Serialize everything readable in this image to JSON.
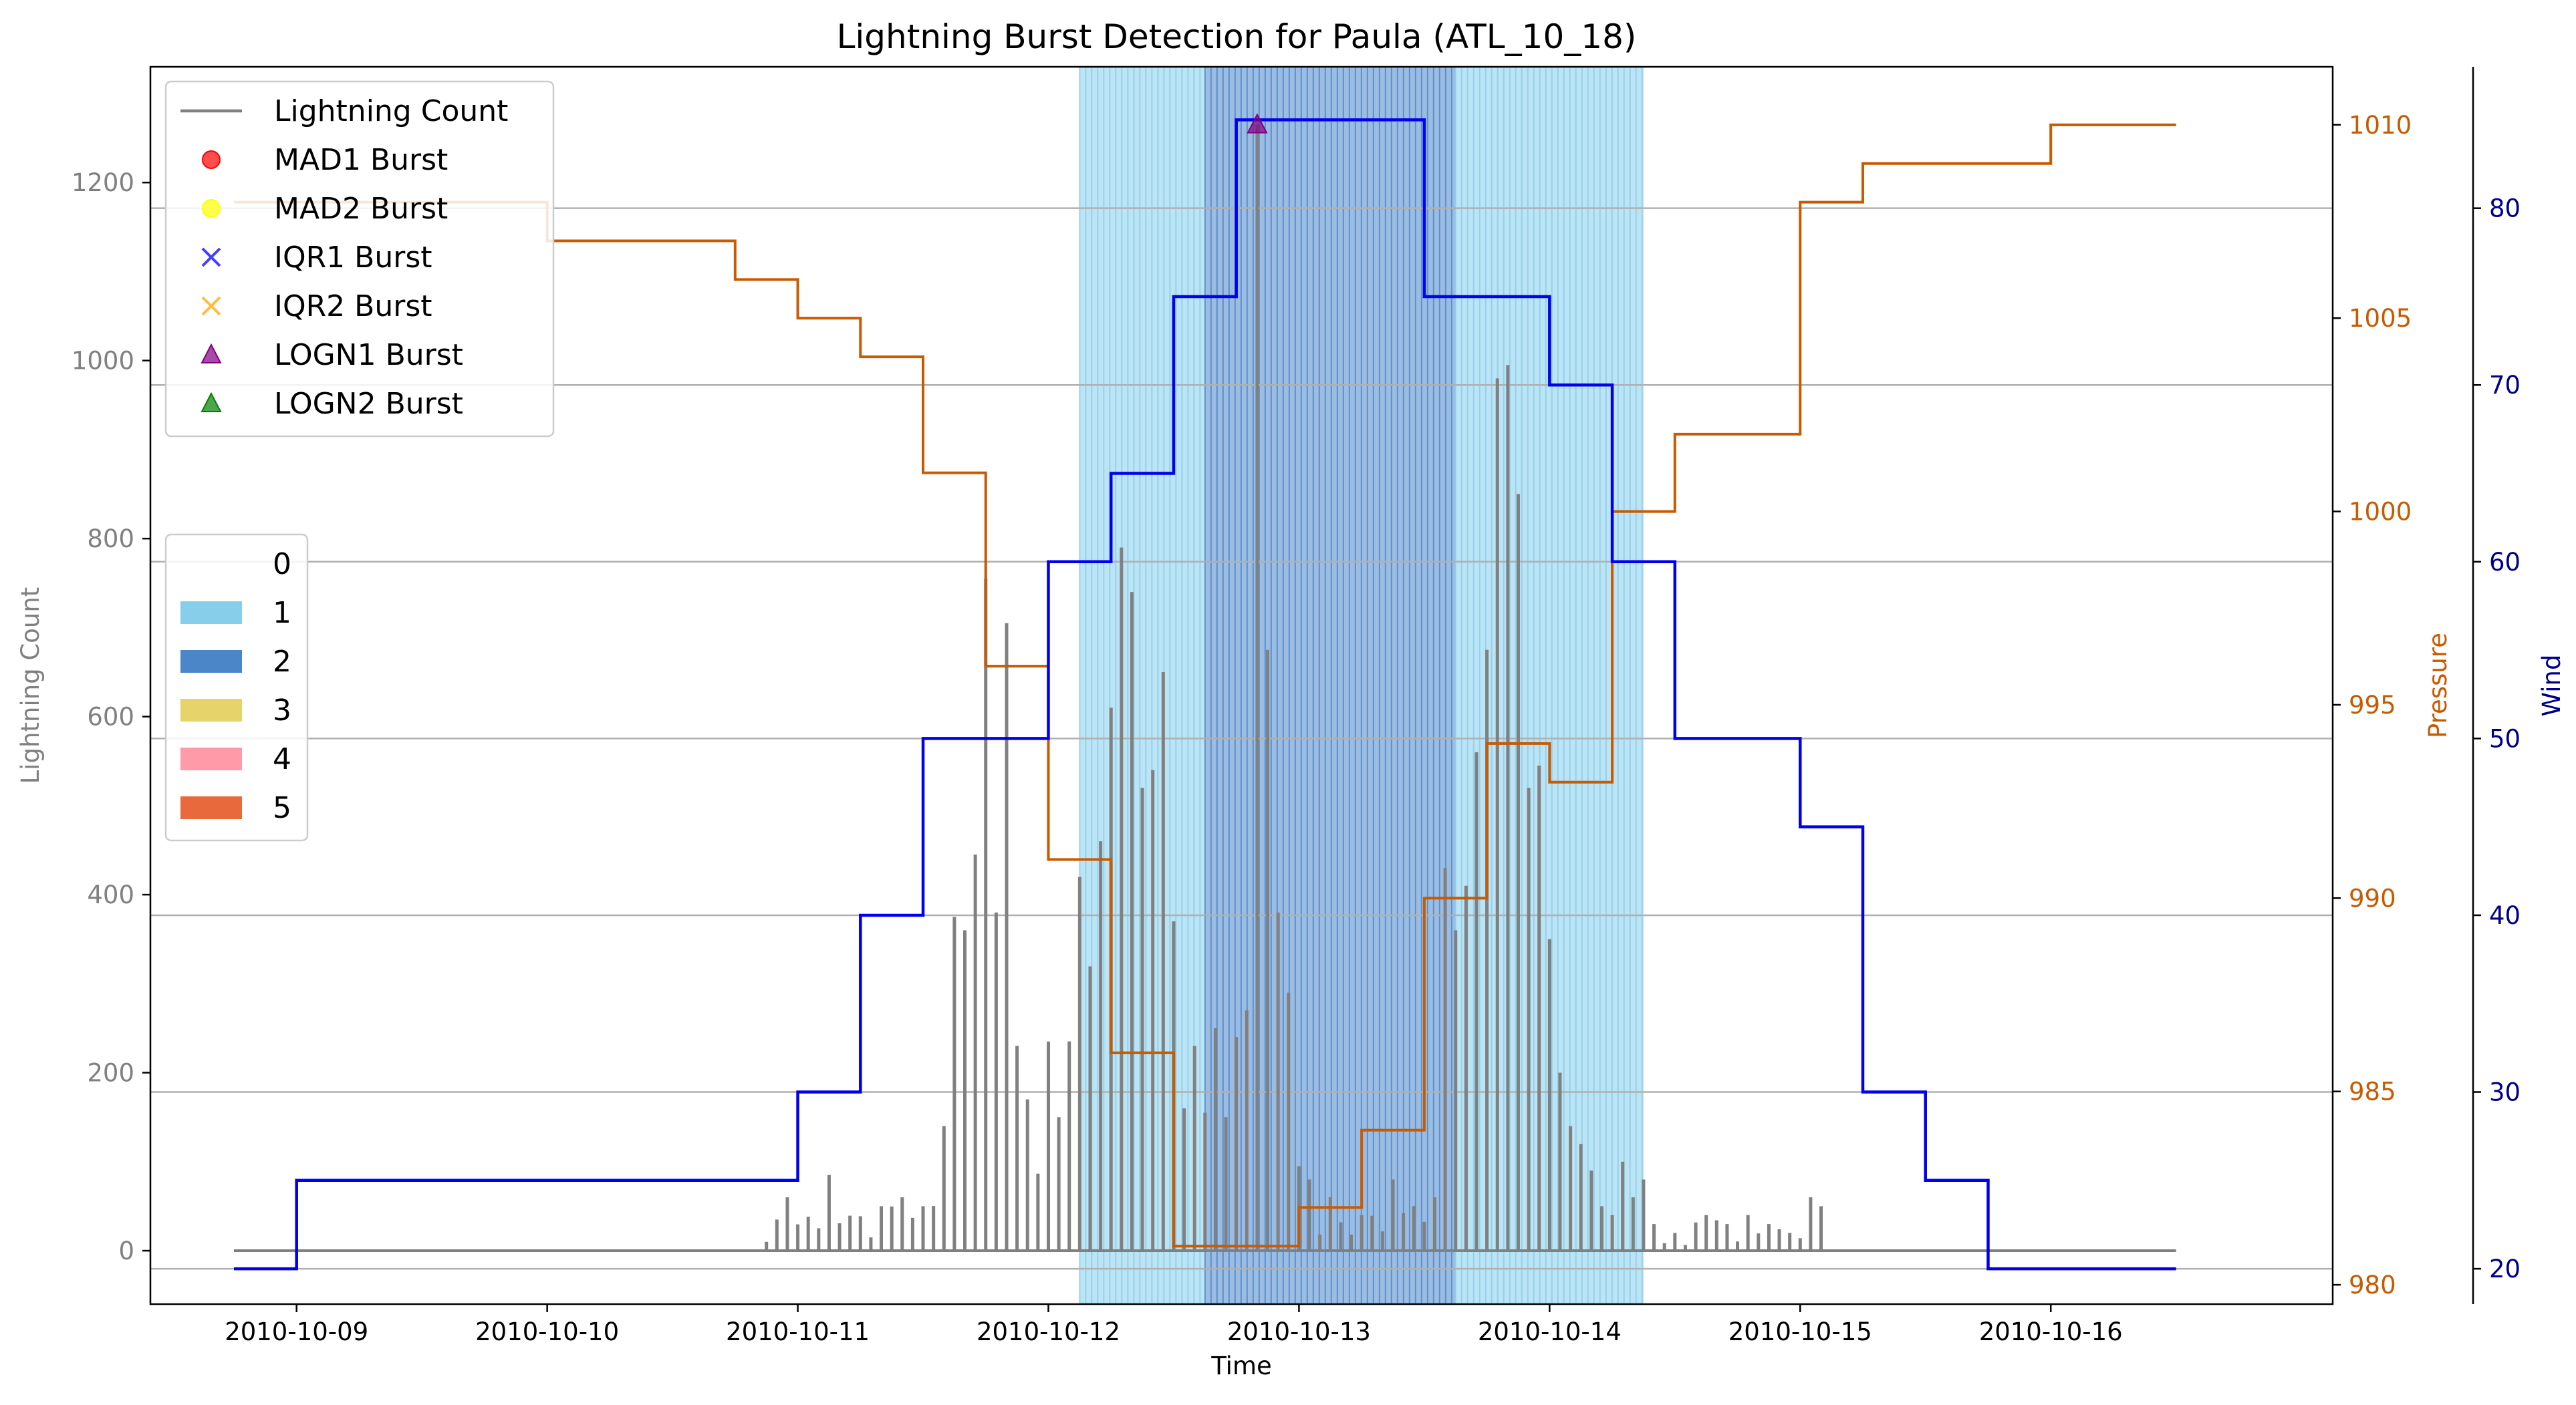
{
  "chart_data": {
    "type": "line",
    "title": "Lightning Burst Detection for Paula (ATL_10_18)",
    "xlabel": "Time",
    "ylabel_left": "Lightning Count",
    "ylabel_pressure": "Pressure",
    "ylabel_wind": "Wind",
    "x_range": [
      "2010-10-08 10:00",
      "2010-10-17 03:00"
    ],
    "ylim_left": [
      -60,
      1330
    ],
    "ylim_pressure": [
      979.5,
      1011.5
    ],
    "ylim_wind": [
      18,
      88
    ],
    "x_ticks": [
      "2010-10-09",
      "2010-10-10",
      "2010-10-11",
      "2010-10-12",
      "2010-10-13",
      "2010-10-14",
      "2010-10-15",
      "2010-10-16"
    ],
    "y_ticks_left": [
      "0",
      "200",
      "400",
      "600",
      "800",
      "1000",
      "1200"
    ],
    "y_ticks_pressure": [
      "980",
      "985",
      "990",
      "995",
      "1000",
      "1005",
      "1010"
    ],
    "y_ticks_wind": [
      "20",
      "30",
      "40",
      "50",
      "60",
      "70",
      "80"
    ],
    "gridlines_wind": [
      20,
      30,
      40,
      50,
      60,
      70,
      80
    ],
    "colors": {
      "lightning": "#808080",
      "pressure": "#c85a00",
      "wind": "#0000ee",
      "category_1": "#87ceeb",
      "category_2": "#4a86c8",
      "pressure_axis": "#c85a00",
      "wind_axis": "#00008b"
    },
    "category_shading": [
      {
        "category": 1,
        "start": "2010-10-12 12:00",
        "end": "2010-10-12 12:00"
      },
      {
        "category": 1,
        "start": "2010-10-12 03:00",
        "end": "2010-10-12 15:00"
      },
      {
        "category": 2,
        "start": "2010-10-12 15:00",
        "end": "2010-10-13 15:00"
      },
      {
        "category": 1,
        "start": "2010-10-13 15:00",
        "end": "2010-10-14 09:00"
      }
    ],
    "lightning_peaks": [
      {
        "t": "2010-10-10 21:00",
        "v": 10
      },
      {
        "t": "2010-10-10 22:00",
        "v": 35
      },
      {
        "t": "2010-10-10 23:00",
        "v": 60
      },
      {
        "t": "2010-10-11 00:30",
        "v": 45
      },
      {
        "t": "2010-10-11 02:30",
        "v": 100
      },
      {
        "t": "2010-10-11 03:00",
        "v": 85
      },
      {
        "t": "2010-10-11 08:00",
        "v": 50
      },
      {
        "t": "2010-10-11 10:00",
        "v": 60
      },
      {
        "t": "2010-10-11 12:00",
        "v": 50
      },
      {
        "t": "2010-10-11 14:00",
        "v": 140
      },
      {
        "t": "2010-10-11 15:00",
        "v": 375
      },
      {
        "t": "2010-10-11 16:00",
        "v": 360
      },
      {
        "t": "2010-10-11 17:00",
        "v": 445
      },
      {
        "t": "2010-10-11 18:00",
        "v": 755
      },
      {
        "t": "2010-10-11 19:00",
        "v": 380
      },
      {
        "t": "2010-10-11 20:00",
        "v": 705
      },
      {
        "t": "2010-10-11 21:00",
        "v": 230
      },
      {
        "t": "2010-10-11 22:00",
        "v": 170
      },
      {
        "t": "2010-10-12 00:00",
        "v": 235
      },
      {
        "t": "2010-10-12 01:00",
        "v": 150
      },
      {
        "t": "2010-10-12 03:00",
        "v": 420
      },
      {
        "t": "2010-10-12 05:00",
        "v": 460
      },
      {
        "t": "2010-10-12 06:00",
        "v": 610
      },
      {
        "t": "2010-10-12 07:00",
        "v": 790
      },
      {
        "t": "2010-10-12 08:00",
        "v": 740
      },
      {
        "t": "2010-10-12 09:00",
        "v": 520
      },
      {
        "t": "2010-10-12 10:00",
        "v": 540
      },
      {
        "t": "2010-10-12 11:00",
        "v": 650
      },
      {
        "t": "2010-10-12 12:00",
        "v": 370
      },
      {
        "t": "2010-10-12 13:00",
        "v": 160
      },
      {
        "t": "2010-10-12 14:00",
        "v": 230
      },
      {
        "t": "2010-10-12 15:00",
        "v": 155
      },
      {
        "t": "2010-10-12 16:00",
        "v": 250
      },
      {
        "t": "2010-10-12 17:00",
        "v": 150
      },
      {
        "t": "2010-10-12 18:00",
        "v": 240
      },
      {
        "t": "2010-10-12 19:00",
        "v": 270
      },
      {
        "t": "2010-10-12 20:00",
        "v": 1265
      },
      {
        "t": "2010-10-12 21:00",
        "v": 675
      },
      {
        "t": "2010-10-12 22:00",
        "v": 380
      },
      {
        "t": "2010-10-12 23:00",
        "v": 290
      },
      {
        "t": "2010-10-13 00:00",
        "v": 95
      },
      {
        "t": "2010-10-13 01:00",
        "v": 80
      },
      {
        "t": "2010-10-13 03:00",
        "v": 60
      },
      {
        "t": "2010-10-13 06:00",
        "v": 40
      },
      {
        "t": "2010-10-13 09:00",
        "v": 80
      },
      {
        "t": "2010-10-13 11:00",
        "v": 50
      },
      {
        "t": "2010-10-13 13:00",
        "v": 60
      },
      {
        "t": "2010-10-13 14:00",
        "v": 430
      },
      {
        "t": "2010-10-13 15:00",
        "v": 360
      },
      {
        "t": "2010-10-13 16:00",
        "v": 410
      },
      {
        "t": "2010-10-13 17:00",
        "v": 560
      },
      {
        "t": "2010-10-13 18:00",
        "v": 675
      },
      {
        "t": "2010-10-13 19:00",
        "v": 980
      },
      {
        "t": "2010-10-13 20:00",
        "v": 995
      },
      {
        "t": "2010-10-13 21:00",
        "v": 850
      },
      {
        "t": "2010-10-13 22:00",
        "v": 520
      },
      {
        "t": "2010-10-13 23:00",
        "v": 545
      },
      {
        "t": "2010-10-14 00:00",
        "v": 350
      },
      {
        "t": "2010-10-14 01:00",
        "v": 200
      },
      {
        "t": "2010-10-14 02:00",
        "v": 140
      },
      {
        "t": "2010-10-14 03:00",
        "v": 120
      },
      {
        "t": "2010-10-14 04:00",
        "v": 90
      },
      {
        "t": "2010-10-14 05:00",
        "v": 50
      },
      {
        "t": "2010-10-14 06:00",
        "v": 40
      },
      {
        "t": "2010-10-14 07:00",
        "v": 100
      },
      {
        "t": "2010-10-14 08:00",
        "v": 60
      },
      {
        "t": "2010-10-14 09:00",
        "v": 80
      },
      {
        "t": "2010-10-14 10:00",
        "v": 30
      },
      {
        "t": "2010-10-14 12:00",
        "v": 20
      },
      {
        "t": "2010-10-14 15:00",
        "v": 40
      },
      {
        "t": "2010-10-14 17:00",
        "v": 30
      },
      {
        "t": "2010-10-14 19:00",
        "v": 40
      },
      {
        "t": "2010-10-14 21:00",
        "v": 30
      },
      {
        "t": "2010-10-14 23:00",
        "v": 20
      },
      {
        "t": "2010-10-15 01:00",
        "v": 60
      },
      {
        "t": "2010-10-15 02:00",
        "v": 50
      }
    ],
    "pressure_steps": [
      {
        "t": "2010-10-08 18:00",
        "v": 1008
      },
      {
        "t": "2010-10-10 00:00",
        "v": 1007
      },
      {
        "t": "2010-10-10 18:00",
        "v": 1006
      },
      {
        "t": "2010-10-11 00:00",
        "v": 1005
      },
      {
        "t": "2010-10-11 06:00",
        "v": 1004
      },
      {
        "t": "2010-10-11 12:00",
        "v": 1001
      },
      {
        "t": "2010-10-11 18:00",
        "v": 996
      },
      {
        "t": "2010-10-12 00:00",
        "v": 991
      },
      {
        "t": "2010-10-12 06:00",
        "v": 986
      },
      {
        "t": "2010-10-12 12:00",
        "v": 981
      },
      {
        "t": "2010-10-12 18:00",
        "v": 981
      },
      {
        "t": "2010-10-13 00:00",
        "v": 982
      },
      {
        "t": "2010-10-13 06:00",
        "v": 984
      },
      {
        "t": "2010-10-13 12:00",
        "v": 990
      },
      {
        "t": "2010-10-13 18:00",
        "v": 994
      },
      {
        "t": "2010-10-14 00:00",
        "v": 993
      },
      {
        "t": "2010-10-14 06:00",
        "v": 1000
      },
      {
        "t": "2010-10-14 12:00",
        "v": 1002
      },
      {
        "t": "2010-10-14 18:00",
        "v": 1002
      },
      {
        "t": "2010-10-15 00:00",
        "v": 1008
      },
      {
        "t": "2010-10-15 06:00",
        "v": 1009
      },
      {
        "t": "2010-10-15 12:00",
        "v": 1009
      },
      {
        "t": "2010-10-15 18:00",
        "v": 1009
      },
      {
        "t": "2010-10-16 00:00",
        "v": 1010
      },
      {
        "t": "2010-10-16 12:00",
        "v": 1010
      }
    ],
    "wind_steps": [
      {
        "t": "2010-10-08 18:00",
        "v": 20
      },
      {
        "t": "2010-10-09 00:00",
        "v": 25
      },
      {
        "t": "2010-10-10 18:00",
        "v": 25
      },
      {
        "t": "2010-10-11 00:00",
        "v": 30
      },
      {
        "t": "2010-10-11 06:00",
        "v": 40
      },
      {
        "t": "2010-10-11 12:00",
        "v": 50
      },
      {
        "t": "2010-10-11 18:00",
        "v": 50
      },
      {
        "t": "2010-10-12 00:00",
        "v": 60
      },
      {
        "t": "2010-10-12 06:00",
        "v": 65
      },
      {
        "t": "2010-10-12 12:00",
        "v": 75
      },
      {
        "t": "2010-10-12 18:00",
        "v": 85
      },
      {
        "t": "2010-10-13 00:00",
        "v": 85
      },
      {
        "t": "2010-10-13 06:00",
        "v": 85
      },
      {
        "t": "2010-10-13 12:00",
        "v": 75
      },
      {
        "t": "2010-10-13 18:00",
        "v": 75
      },
      {
        "t": "2010-10-14 00:00",
        "v": 70
      },
      {
        "t": "2010-10-14 06:00",
        "v": 60
      },
      {
        "t": "2010-10-14 12:00",
        "v": 50
      },
      {
        "t": "2010-10-14 18:00",
        "v": 50
      },
      {
        "t": "2010-10-15 00:00",
        "v": 45
      },
      {
        "t": "2010-10-15 06:00",
        "v": 30
      },
      {
        "t": "2010-10-15 12:00",
        "v": 25
      },
      {
        "t": "2010-10-15 18:00",
        "v": 20
      },
      {
        "t": "2010-10-16 00:00",
        "v": 20
      },
      {
        "t": "2010-10-16 12:00",
        "v": 20
      }
    ],
    "bursts": [
      {
        "type": "LOGN1",
        "t": "2010-10-12 20:00",
        "v": 1265
      }
    ],
    "legend_markers": [
      {
        "label": "Lightning Count",
        "kind": "line",
        "color": "#808080"
      },
      {
        "label": "MAD1 Burst",
        "kind": "circle",
        "color": "#ff0000"
      },
      {
        "label": "MAD2 Burst",
        "kind": "circle",
        "color": "#ffff00"
      },
      {
        "label": "IQR1 Burst",
        "kind": "x",
        "color": "#0000ff"
      },
      {
        "label": "IQR2 Burst",
        "kind": "x",
        "color": "#ffa500"
      },
      {
        "label": "LOGN1 Burst",
        "kind": "triangle",
        "color": "#800080"
      },
      {
        "label": "LOGN2 Burst",
        "kind": "triangle",
        "color": "#008000"
      }
    ],
    "legend_categories": [
      {
        "label": "0",
        "color": "none"
      },
      {
        "label": "1",
        "color": "#87ceeb"
      },
      {
        "label": "2",
        "color": "#4a86c8"
      },
      {
        "label": "3",
        "color": "#e6d36a"
      },
      {
        "label": "4",
        "color": "#ff9aa8"
      },
      {
        "label": "5",
        "color": "#e86a3c"
      }
    ],
    "legend_marker_placement": "top-left",
    "legend_category_placement": "middle-left",
    "grid": true
  }
}
